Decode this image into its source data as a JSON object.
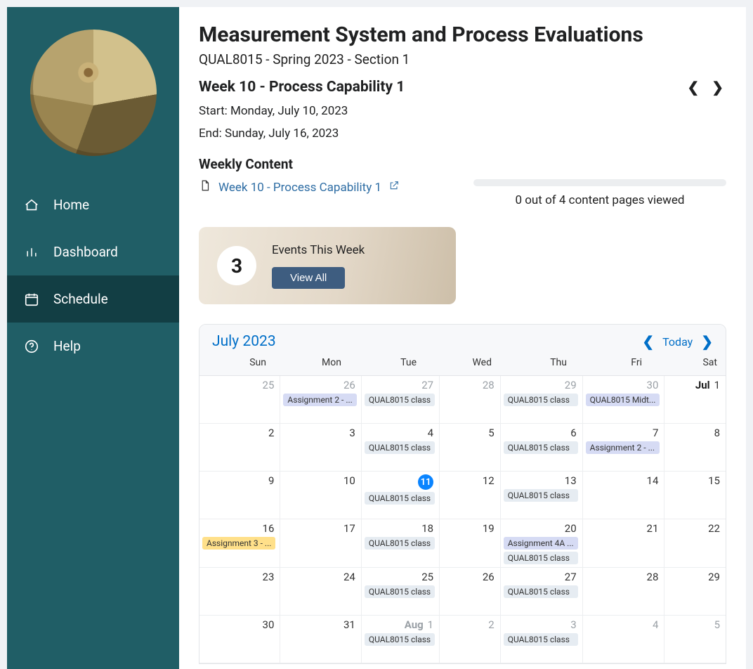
{
  "sidebar": {
    "items": [
      {
        "label": "Home",
        "icon": "home"
      },
      {
        "label": "Dashboard",
        "icon": "bars"
      },
      {
        "label": "Schedule",
        "icon": "calendar"
      },
      {
        "label": "Help",
        "icon": "help"
      }
    ],
    "active_index": 2
  },
  "course": {
    "title": "Measurement System and Process Evaluations",
    "code_line": "QUAL8015 - Spring 2023 - Section 1"
  },
  "week": {
    "title": "Week 10 - Process Capability 1",
    "start_label": "Start: Monday, July 10, 2023",
    "end_label": "End: Sunday, July 16, 2023"
  },
  "weekly_content": {
    "heading": "Weekly Content",
    "link_text": "Week 10 - Process Capability 1",
    "progress_text": "0 out of 4 content pages viewed",
    "progress_value": 0,
    "progress_max": 4
  },
  "events_card": {
    "count": "3",
    "label": "Events This Week",
    "button": "View All"
  },
  "calendar": {
    "month_label": "July 2023",
    "today_label": "Today",
    "dow": [
      "Sun",
      "Mon",
      "Tue",
      "Wed",
      "Thu",
      "Fri",
      "Sat"
    ],
    "event_colors": {
      "class": "#e6ecf2",
      "assign": "#d6dbf4",
      "hl": "#ffe08a"
    },
    "cells": [
      {
        "day": "25",
        "muted": true,
        "events": []
      },
      {
        "day": "26",
        "muted": true,
        "events": [
          {
            "text": "Assignment 2 - ...",
            "type": "assign"
          }
        ]
      },
      {
        "day": "27",
        "muted": true,
        "events": [
          {
            "text": "QUAL8015 class",
            "type": "class"
          }
        ]
      },
      {
        "day": "28",
        "muted": true,
        "events": []
      },
      {
        "day": "29",
        "muted": true,
        "events": [
          {
            "text": "QUAL8015 class",
            "type": "class"
          }
        ]
      },
      {
        "day": "30",
        "muted": true,
        "events": [
          {
            "text": "QUAL8015 Midt...",
            "type": "assign"
          }
        ]
      },
      {
        "day": "1",
        "month": "Jul",
        "events": []
      },
      {
        "day": "2",
        "events": []
      },
      {
        "day": "3",
        "events": []
      },
      {
        "day": "4",
        "events": [
          {
            "text": "QUAL8015 class",
            "type": "class"
          }
        ]
      },
      {
        "day": "5",
        "events": []
      },
      {
        "day": "6",
        "events": [
          {
            "text": "QUAL8015 class",
            "type": "class"
          }
        ]
      },
      {
        "day": "7",
        "events": [
          {
            "text": "Assignment 2 - ...",
            "type": "assign"
          }
        ]
      },
      {
        "day": "8",
        "events": []
      },
      {
        "day": "9",
        "events": []
      },
      {
        "day": "10",
        "events": []
      },
      {
        "day": "11",
        "today": true,
        "events": [
          {
            "text": "QUAL8015 class",
            "type": "class"
          }
        ]
      },
      {
        "day": "12",
        "events": []
      },
      {
        "day": "13",
        "events": [
          {
            "text": "QUAL8015 class",
            "type": "class"
          }
        ]
      },
      {
        "day": "14",
        "events": []
      },
      {
        "day": "15",
        "events": []
      },
      {
        "day": "16",
        "events": [
          {
            "text": "Assignment 3 - ...",
            "type": "hl"
          }
        ]
      },
      {
        "day": "17",
        "events": []
      },
      {
        "day": "18",
        "events": [
          {
            "text": "QUAL8015 class",
            "type": "class"
          }
        ]
      },
      {
        "day": "19",
        "events": []
      },
      {
        "day": "20",
        "events": [
          {
            "text": "Assignment 4A ...",
            "type": "assign"
          },
          {
            "text": "QUAL8015 class",
            "type": "class"
          }
        ]
      },
      {
        "day": "21",
        "events": []
      },
      {
        "day": "22",
        "events": []
      },
      {
        "day": "23",
        "events": []
      },
      {
        "day": "24",
        "events": []
      },
      {
        "day": "25",
        "events": [
          {
            "text": "QUAL8015 class",
            "type": "class"
          }
        ]
      },
      {
        "day": "26",
        "events": []
      },
      {
        "day": "27",
        "events": [
          {
            "text": "QUAL8015 class",
            "type": "class"
          }
        ]
      },
      {
        "day": "28",
        "events": []
      },
      {
        "day": "29",
        "events": []
      },
      {
        "day": "30",
        "events": []
      },
      {
        "day": "31",
        "events": []
      },
      {
        "day": "1",
        "month": "Aug",
        "month_muted": true,
        "muted": true,
        "events": [
          {
            "text": "QUAL8015 class",
            "type": "class"
          }
        ]
      },
      {
        "day": "2",
        "muted": true,
        "events": []
      },
      {
        "day": "3",
        "muted": true,
        "events": [
          {
            "text": "QUAL8015 class",
            "type": "class"
          }
        ]
      },
      {
        "day": "4",
        "muted": true,
        "events": []
      },
      {
        "day": "5",
        "muted": true,
        "events": []
      }
    ]
  }
}
